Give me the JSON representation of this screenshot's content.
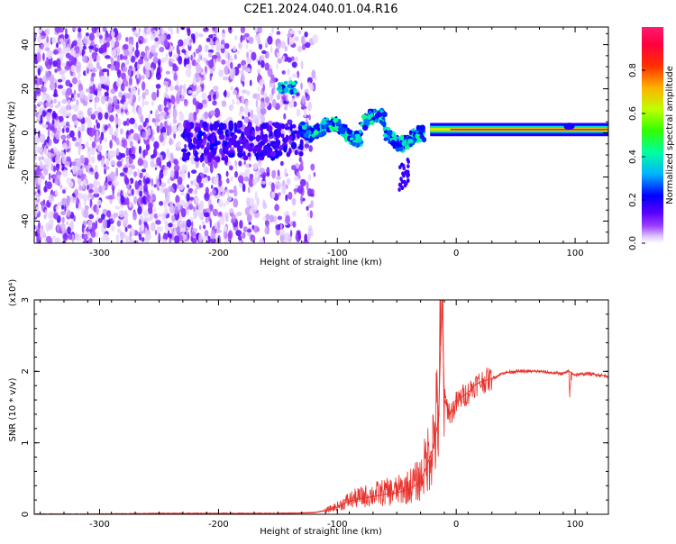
{
  "title": "C2E1.2024.040.01.04.R16",
  "chart_data": [
    {
      "type": "heatmap",
      "xlabel": "Height of straight line (km)",
      "ylabel": "Frequency (Hz)",
      "xlim": [
        -355,
        128
      ],
      "ylim": [
        -50,
        48
      ],
      "xticks": [
        -300,
        -200,
        -100,
        0,
        100
      ],
      "yticks": [
        -40,
        -20,
        0,
        20,
        40
      ],
      "colorbar": {
        "label": "Normalized spectral amplitude",
        "range": [
          0.0,
          1.0
        ],
        "ticks": [
          0.0,
          0.2,
          0.4,
          0.6,
          0.8
        ],
        "colors": [
          "#ffffff",
          "#c080ff",
          "#7f00ff",
          "#0000ff",
          "#00c8ff",
          "#00ff80",
          "#80ff00",
          "#ffff00",
          "#ff8000",
          "#ff0000",
          "#ff1a66"
        ]
      },
      "features": [
        {
          "x_range": [
            -355,
            -120
          ],
          "freq_range": [
            -50,
            48
          ],
          "amplitude": 0.1
        },
        {
          "x_range": [
            -150,
            -135
          ],
          "freq_center": 20,
          "amplitude": 0.4
        },
        {
          "x_range": [
            -130,
            -110
          ],
          "freq_center": 3,
          "amplitude": 0.4
        },
        {
          "x_range": [
            -110,
            -30
          ],
          "freq_center": 0,
          "amplitude": 0.45
        },
        {
          "x_range": [
            -20,
            128
          ],
          "freq_center": 1.5,
          "amplitude": 0.9
        }
      ]
    },
    {
      "type": "line",
      "xlabel": "Height of straight line (km)",
      "ylabel": "SNR (10 * v/v)",
      "yscale_label": "(x10⁴)",
      "xlim": [
        -355,
        128
      ],
      "ylim": [
        0,
        3
      ],
      "xticks": [
        -300,
        -200,
        -100,
        0,
        100
      ],
      "yticks": [
        0,
        1,
        2,
        3
      ],
      "color": "#e8322c",
      "series": [
        {
          "x": [
            -355,
            -300,
            -250,
            -200,
            -150,
            -120,
            -110,
            -100,
            -90,
            -80,
            -70,
            -60,
            -50,
            -40,
            -30,
            -20,
            -15,
            -12,
            -10,
            -5,
            0,
            5,
            10,
            15,
            20,
            30,
            40,
            50,
            60,
            70,
            80,
            90,
            95,
            100,
            110,
            120,
            128
          ],
          "y": [
            0.0,
            0.0,
            0.01,
            0.01,
            0.01,
            0.02,
            0.05,
            0.1,
            0.18,
            0.22,
            0.25,
            0.28,
            0.3,
            0.35,
            0.45,
            0.9,
            1.3,
            3.0,
            1.6,
            1.4,
            1.55,
            1.65,
            1.7,
            1.8,
            1.85,
            1.9,
            1.98,
            2.0,
            2.0,
            2.0,
            1.98,
            1.97,
            2.0,
            1.95,
            1.97,
            1.95,
            1.93
          ]
        }
      ]
    }
  ]
}
